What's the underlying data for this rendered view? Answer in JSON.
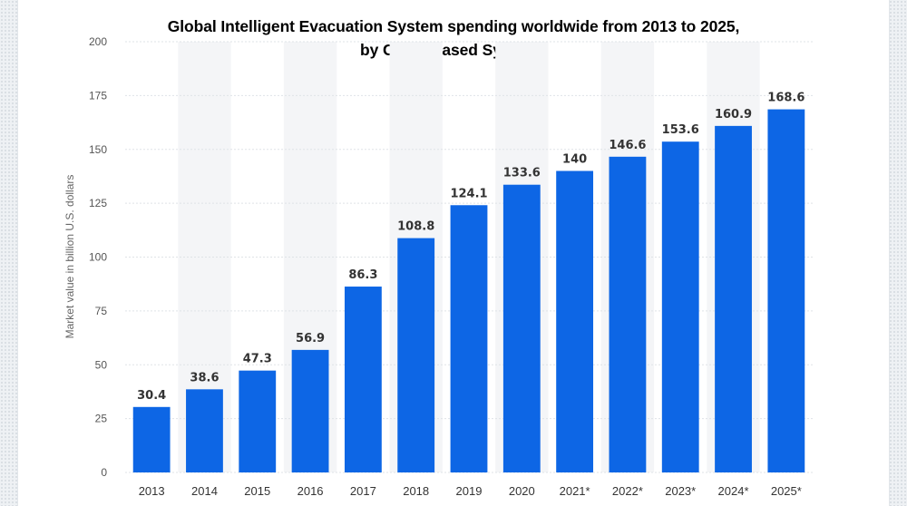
{
  "chart_data": {
    "type": "bar",
    "title_line1": "Global Intelligent Evacuation System spending worldwide from 2013 to 2025,",
    "title_line2": "by Cloud-based Systems",
    "ylabel": "Market value in billion U.S. dollars",
    "xlabel": "",
    "categories": [
      "2013",
      "2014",
      "2015",
      "2016",
      "2017",
      "2018",
      "2019",
      "2020",
      "2021*",
      "2022*",
      "2023*",
      "2024*",
      "2025*"
    ],
    "values": [
      30.4,
      38.6,
      47.3,
      56.9,
      86.3,
      108.8,
      124.1,
      133.6,
      140,
      146.6,
      153.6,
      160.9,
      168.6
    ],
    "value_labels": [
      "30.4",
      "38.6",
      "47.3",
      "56.9",
      "86.3",
      "108.8",
      "124.1",
      "133.6",
      "140",
      "146.6",
      "153.6",
      "160.9",
      "168.6"
    ],
    "ylim": [
      0,
      200
    ],
    "yticks": [
      "0",
      "25",
      "50",
      "75",
      "100",
      "125",
      "150",
      "175",
      "200"
    ],
    "grid": true,
    "bar_color": "#0d66e5"
  }
}
